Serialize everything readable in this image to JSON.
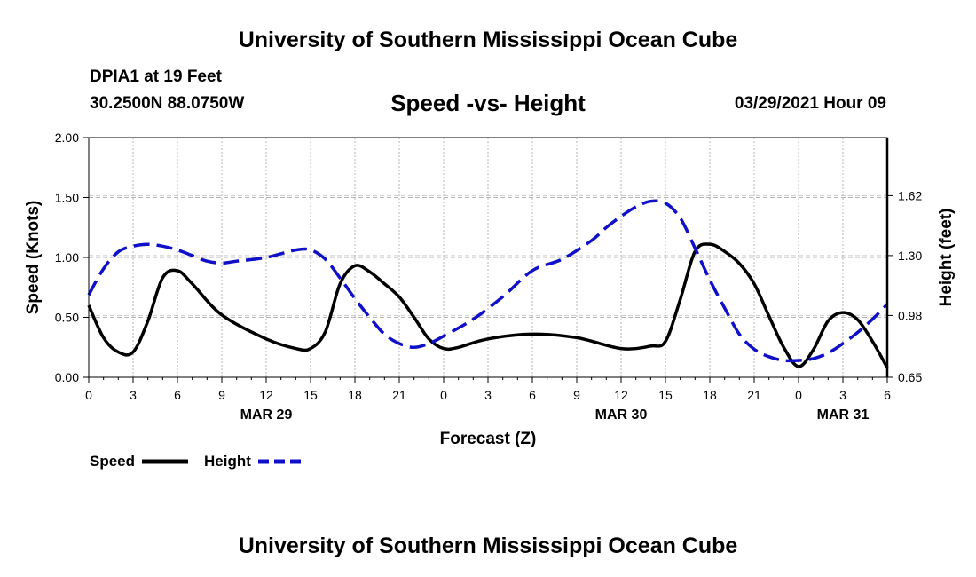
{
  "header": {
    "org_title": "University of Southern Mississippi Ocean Cube",
    "station": "DPIA1 at 19 Feet",
    "coords": "30.2500N  88.0750W",
    "datetime": "03/29/2021 Hour 09"
  },
  "footer": {
    "org_title": "University of Southern Mississippi Ocean Cube"
  },
  "colors": {
    "speed": "#000000",
    "height": "#1010c8",
    "grid": "#b4b4b4"
  },
  "chart_data": {
    "type": "line",
    "title": "Speed -vs- Height",
    "xlabel": "Forecast (Z)",
    "ylabel": "Speed (Knots)",
    "y2label": "Height (feet)",
    "xlim": [
      0,
      54
    ],
    "ylim": [
      0,
      2.0
    ],
    "y2lim": [
      0.65,
      1.93
    ],
    "xticks": [
      0,
      3,
      6,
      9,
      12,
      15,
      18,
      21,
      24,
      27,
      30,
      33,
      36,
      39,
      42,
      45,
      48,
      51,
      54
    ],
    "xtick_labels": [
      "0",
      "3",
      "6",
      "9",
      "12",
      "15",
      "18",
      "21",
      "0",
      "3",
      "6",
      "9",
      "12",
      "15",
      "18",
      "21",
      "0",
      "3",
      "6"
    ],
    "date_labels": [
      {
        "x": 12,
        "label": "MAR 29"
      },
      {
        "x": 36,
        "label": "MAR 30"
      },
      {
        "x": 51,
        "label": "MAR 31"
      }
    ],
    "yticks": [
      0.0,
      0.5,
      1.0,
      1.5,
      2.0
    ],
    "ytick_labels": [
      "0.00",
      "0.50",
      "1.00",
      "1.50",
      "2.00"
    ],
    "y2ticks": [
      0.65,
      0.98,
      1.3,
      1.62
    ],
    "y2tick_labels": [
      "0.65",
      "0.98",
      "1.30",
      "1.62"
    ],
    "series": [
      {
        "name": "Speed",
        "axis": "left",
        "style": "solid",
        "x": [
          0,
          1,
          2,
          3,
          4,
          5,
          6,
          7,
          9,
          12,
          14,
          15,
          16,
          17,
          18,
          19,
          20,
          21,
          22,
          23,
          24,
          25,
          27,
          30,
          33,
          36,
          38,
          39,
          40,
          41,
          42,
          43,
          44,
          45,
          46,
          47,
          48,
          49,
          50,
          51,
          52,
          53,
          54
        ],
        "values": [
          0.6,
          0.33,
          0.21,
          0.21,
          0.47,
          0.83,
          0.89,
          0.78,
          0.52,
          0.32,
          0.24,
          0.24,
          0.38,
          0.78,
          0.93,
          0.88,
          0.78,
          0.67,
          0.5,
          0.32,
          0.24,
          0.25,
          0.32,
          0.36,
          0.33,
          0.24,
          0.26,
          0.3,
          0.65,
          1.05,
          1.11,
          1.05,
          0.95,
          0.78,
          0.51,
          0.25,
          0.09,
          0.23,
          0.47,
          0.54,
          0.48,
          0.3,
          0.08
        ]
      },
      {
        "name": "Height",
        "axis": "right",
        "style": "dashed",
        "x": [
          0,
          1,
          2,
          3,
          4,
          5,
          6,
          7,
          8,
          9,
          10,
          12,
          14,
          15,
          16,
          17,
          18,
          19,
          20,
          21,
          22,
          23,
          24,
          26,
          28,
          30,
          32,
          34,
          35,
          36,
          37,
          38,
          39,
          40,
          41,
          42,
          43,
          44,
          45,
          46,
          47,
          48,
          49,
          50,
          51,
          52,
          53,
          54
        ],
        "values": [
          1.09,
          1.23,
          1.32,
          1.35,
          1.36,
          1.35,
          1.33,
          1.3,
          1.27,
          1.26,
          1.27,
          1.29,
          1.33,
          1.33,
          1.28,
          1.18,
          1.07,
          0.97,
          0.88,
          0.83,
          0.81,
          0.83,
          0.87,
          0.96,
          1.08,
          1.22,
          1.28,
          1.38,
          1.45,
          1.51,
          1.56,
          1.59,
          1.58,
          1.5,
          1.34,
          1.17,
          1.02,
          0.88,
          0.8,
          0.76,
          0.74,
          0.74,
          0.75,
          0.78,
          0.83,
          0.89,
          0.96,
          1.04
        ]
      }
    ],
    "legend": [
      {
        "label": "Speed",
        "style": "solid"
      },
      {
        "label": "Height",
        "style": "dashed"
      }
    ],
    "legend_position": "bottom-left",
    "grid": true
  }
}
